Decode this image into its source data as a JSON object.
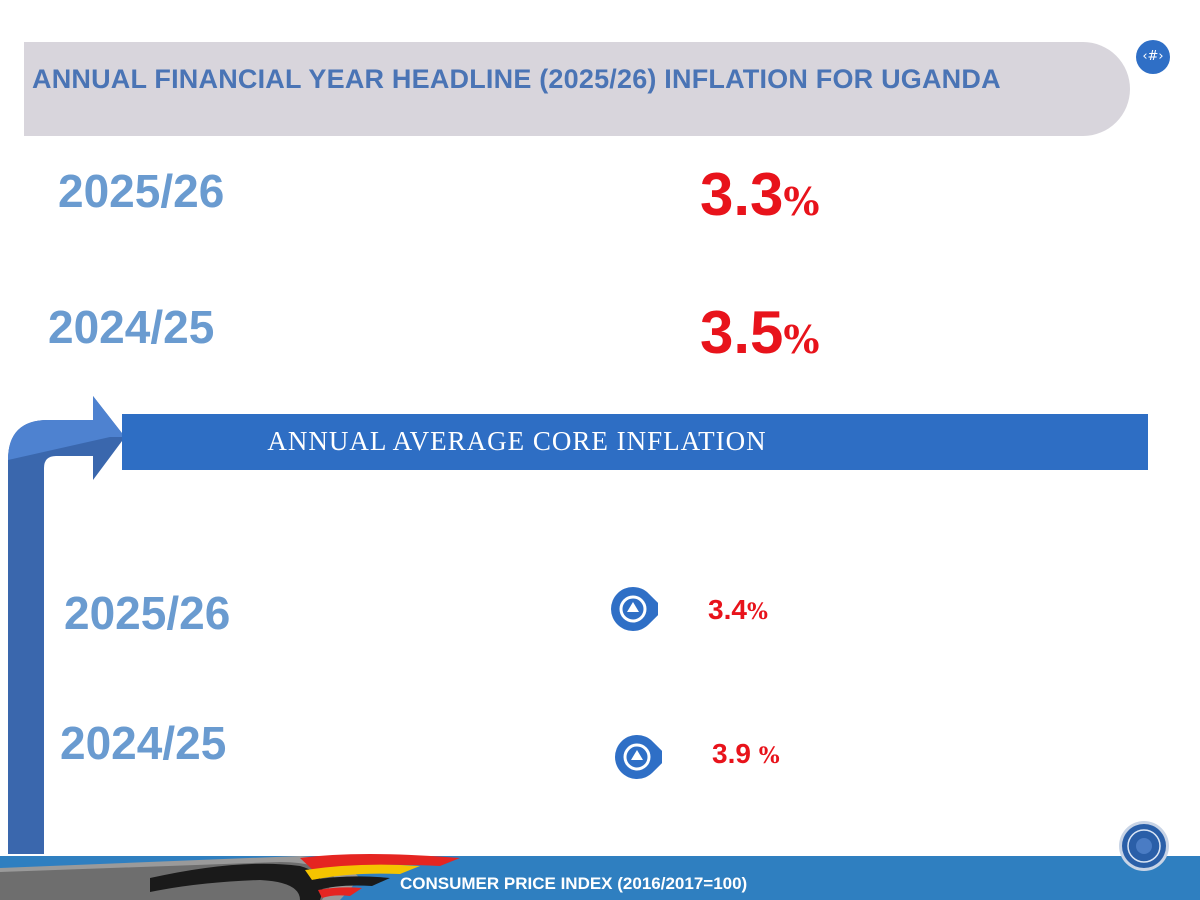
{
  "header": {
    "title": "ANNUAL FINANCIAL YEAR HEADLINE (2025/26) INFLATION FOR UGANDA",
    "slide_number": "‹#›"
  },
  "headline": {
    "rows": [
      {
        "year": "2025/26",
        "value": "3.3",
        "unit": "%"
      },
      {
        "year": "2024/25",
        "value": "3.5",
        "unit": "%"
      }
    ]
  },
  "core": {
    "title": "ANNUAL AVERAGE CORE INFLATION",
    "rows": [
      {
        "year": "2025/26",
        "value": "3.4",
        "unit": "%",
        "icon": "up-arrow-circle-icon"
      },
      {
        "year": "2024/25",
        "value": "3.9 ",
        "unit": "%",
        "icon": "up-arrow-circle-icon"
      }
    ]
  },
  "footer": {
    "text": "CONSUMER PRICE INDEX (2016/2017=100)"
  },
  "colors": {
    "primary_blue": "#2e6ec4",
    "year_blue": "#6a9bd0",
    "value_red": "#e8131b",
    "banner_gray": "#d8d5dc"
  }
}
